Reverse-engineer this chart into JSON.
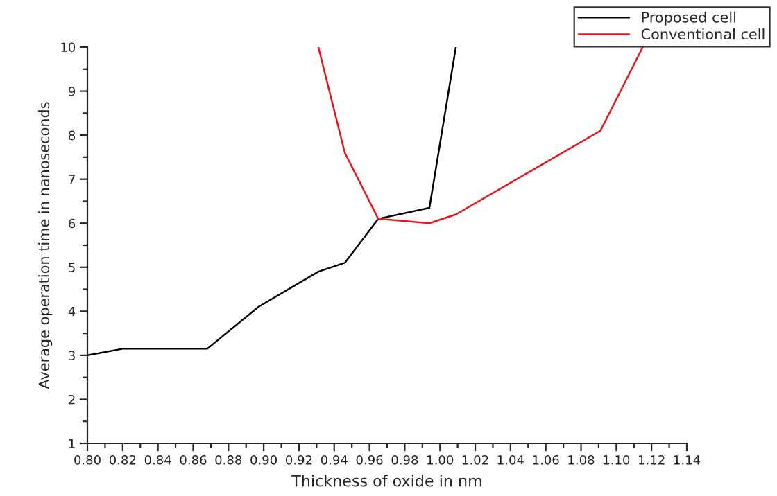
{
  "chart_data": {
    "type": "line",
    "xlabel": "Thickness of oxide in nm",
    "ylabel": "Average operation time in nanoseconds",
    "xlim": [
      0.8,
      1.14
    ],
    "xticks": [
      {
        "value": 0.8,
        "label": "0.80"
      },
      {
        "value": 0.82,
        "label": "0.82"
      },
      {
        "value": 0.84,
        "label": "0.84"
      },
      {
        "value": 0.86,
        "label": "0.86"
      },
      {
        "value": 0.88,
        "label": "0.88"
      },
      {
        "value": 0.9,
        "label": "0.90"
      },
      {
        "value": 0.92,
        "label": "0.92"
      },
      {
        "value": 0.94,
        "label": "0.94"
      },
      {
        "value": 0.96,
        "label": "0.96"
      },
      {
        "value": 0.98,
        "label": "0.98"
      },
      {
        "value": 1.0,
        "label": "1.00"
      },
      {
        "value": 1.02,
        "label": "1.02"
      },
      {
        "value": 1.04,
        "label": "1.04"
      },
      {
        "value": 1.06,
        "label": "1.06"
      },
      {
        "value": 1.08,
        "label": "1.08"
      },
      {
        "value": 1.1,
        "label": "1.10"
      },
      {
        "value": 1.12,
        "label": "1.12"
      },
      {
        "value": 1.14,
        "label": "1.14"
      }
    ],
    "ylim": [
      1,
      10
    ],
    "yticks": [
      1,
      2,
      3,
      4,
      5,
      6,
      7,
      8,
      9,
      10
    ],
    "legend": "top right",
    "grid": false,
    "marker": "none",
    "line_style": "solid",
    "series": [
      {
        "name": "Proposed cell",
        "color": "#000000",
        "x": [
          0.8,
          0.82,
          0.868,
          0.897,
          0.931,
          0.946,
          0.965,
          0.994,
          1.009
        ],
        "values": [
          3.0,
          3.15,
          3.15,
          4.1,
          4.9,
          5.1,
          6.1,
          6.35,
          10
        ]
      },
      {
        "name": "Conventional cell",
        "color": "#e8141c",
        "x": [
          0.931,
          0.946,
          0.965,
          0.994,
          1.009,
          1.091,
          1.115
        ],
        "values": [
          10,
          7.6,
          6.1,
          6.0,
          6.2,
          8.1,
          10
        ]
      }
    ]
  }
}
